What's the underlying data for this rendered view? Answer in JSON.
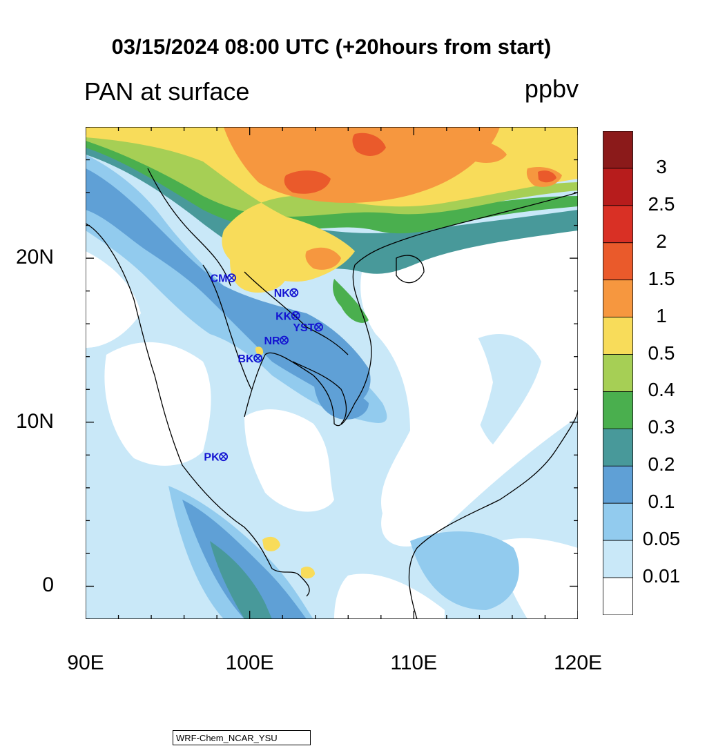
{
  "title": "03/15/2024 08:00 UTC (+20hours from start)",
  "subtitle_left": "PAN at surface",
  "units": "ppbv",
  "credit": "WRF-Chem_NCAR_YSU",
  "map": {
    "lon_range": [
      90,
      120
    ],
    "lat_range": [
      -2,
      28
    ],
    "x_ticks": [
      {
        "lon": 90,
        "label": "90E"
      },
      {
        "lon": 100,
        "label": "100E"
      },
      {
        "lon": 110,
        "label": "110E"
      },
      {
        "lon": 120,
        "label": "120E"
      }
    ],
    "y_ticks": [
      {
        "lat": 20,
        "label": "20N"
      },
      {
        "lat": 10,
        "label": "10N"
      },
      {
        "lat": 0,
        "label": "0"
      }
    ]
  },
  "stations": [
    {
      "code": "CM",
      "lon": 98.9,
      "lat": 18.8
    },
    {
      "code": "NK",
      "lon": 102.7,
      "lat": 17.9
    },
    {
      "code": "KK",
      "lon": 102.8,
      "lat": 16.5
    },
    {
      "code": "YST",
      "lon": 104.2,
      "lat": 15.8
    },
    {
      "code": "NR",
      "lon": 102.1,
      "lat": 15.0
    },
    {
      "code": "BK",
      "lon": 100.5,
      "lat": 13.9
    },
    {
      "code": "PK",
      "lon": 98.4,
      "lat": 7.9
    }
  ],
  "colorbar": {
    "labels": [
      "3",
      "2.5",
      "2",
      "1.5",
      "1",
      "0.5",
      "0.4",
      "0.3",
      "0.2",
      "0.1",
      "0.05",
      "0.01"
    ],
    "colors": [
      "#8b1a1a",
      "#b71c1c",
      "#d93025",
      "#ea5a2b",
      "#f6973f",
      "#f8dc5a",
      "#a6cf55",
      "#4aaf4e",
      "#48999a",
      "#5fa0d6",
      "#92cbee",
      "#c9e8f8",
      "#ffffff"
    ]
  }
}
